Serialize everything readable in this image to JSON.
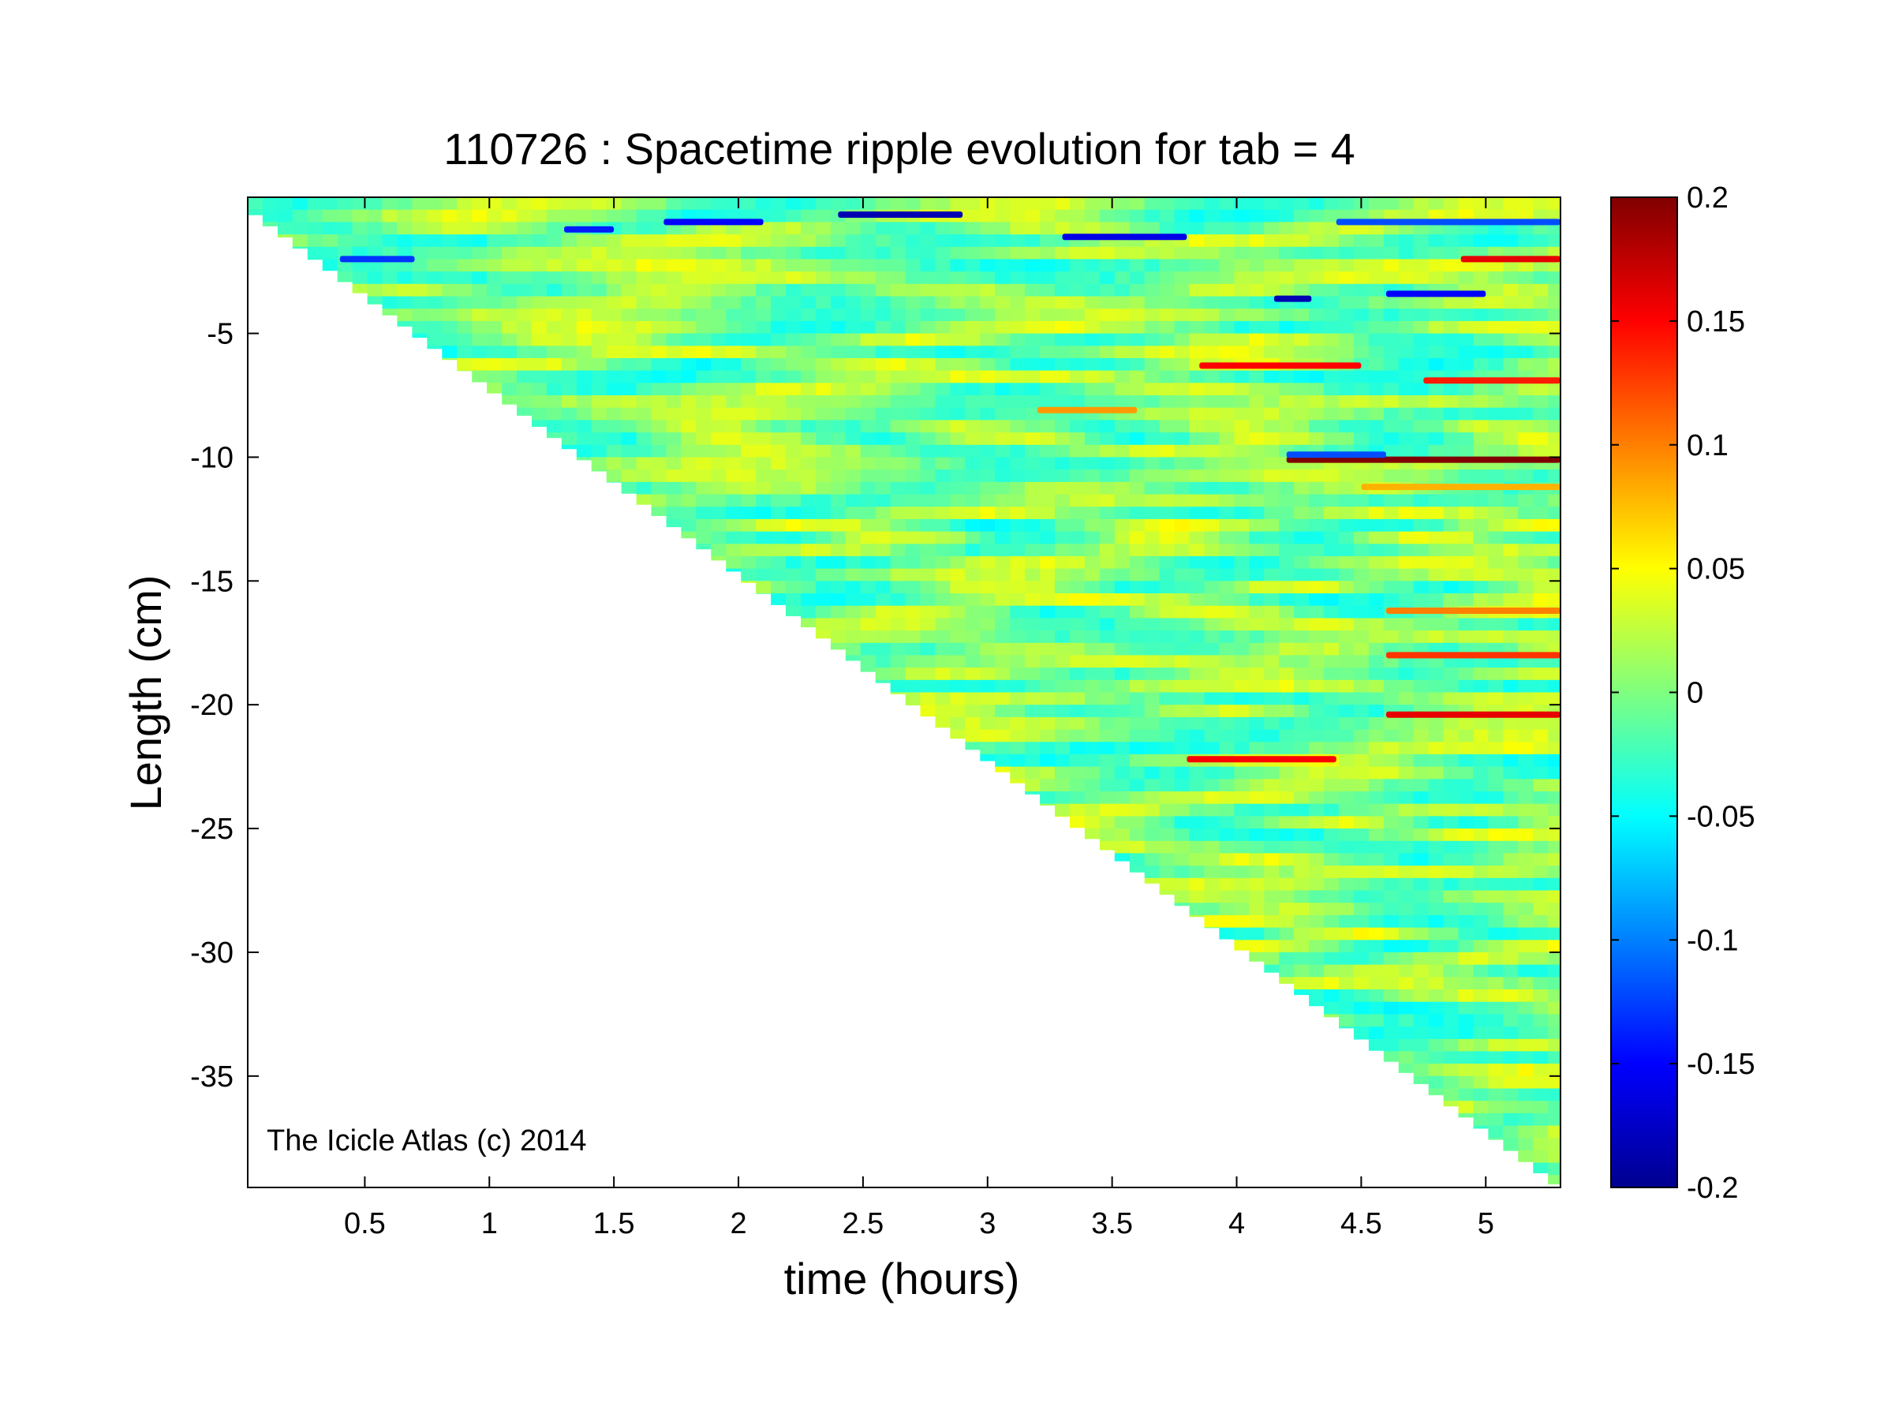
{
  "chart_data": {
    "type": "heatmap",
    "title": "110726 : Spacetime ripple evolution for tab = 4",
    "xlabel": "time (hours)",
    "ylabel": "Length (cm)",
    "annotation": "The Icicle Atlas (c) 2014",
    "xlim": [
      0.03,
      5.3
    ],
    "ylim": [
      -39.5,
      0.5
    ],
    "x_ticks": [
      0.5,
      1,
      1.5,
      2,
      2.5,
      3,
      3.5,
      4,
      4.5,
      5
    ],
    "x_tick_labels": [
      "0.5",
      "1",
      "1.5",
      "2",
      "2.5",
      "3",
      "3.5",
      "4",
      "4.5",
      "5"
    ],
    "y_ticks": [
      -5,
      -10,
      -15,
      -20,
      -25,
      -30,
      -35
    ],
    "y_tick_labels": [
      "-5",
      "-10",
      "-15",
      "-20",
      "-25",
      "-30",
      "-35"
    ],
    "colorbar": {
      "colormap": "jet",
      "clim": [
        -0.2,
        0.2
      ],
      "ticks": [
        0.2,
        0.15,
        0.1,
        0.05,
        0,
        -0.05,
        -0.1,
        -0.15,
        -0.2
      ],
      "tick_labels": [
        "0.2",
        "0.15",
        "0.1",
        "0.05",
        "0",
        "-0.05",
        "-0.1",
        "-0.15",
        "-0.2"
      ]
    },
    "data_region": "triangular: data exists where length >= -7.5 * time; white elsewhere",
    "background_value": 0.0,
    "features": [
      {
        "t_start": 4.2,
        "t_end": 5.3,
        "length": -10.1,
        "value": 0.2
      },
      {
        "t_start": 4.2,
        "t_end": 4.6,
        "length": -9.9,
        "value": -0.12
      },
      {
        "t_start": 3.85,
        "t_end": 4.5,
        "length": -6.3,
        "value": 0.15
      },
      {
        "t_start": 4.75,
        "t_end": 5.3,
        "length": -6.9,
        "value": 0.14
      },
      {
        "t_start": 4.6,
        "t_end": 5.3,
        "length": -18.0,
        "value": 0.13
      },
      {
        "t_start": 4.6,
        "t_end": 5.3,
        "length": -20.4,
        "value": 0.16
      },
      {
        "t_start": 3.8,
        "t_end": 4.4,
        "length": -22.2,
        "value": 0.15
      },
      {
        "t_start": 4.9,
        "t_end": 5.3,
        "length": -2.0,
        "value": 0.16
      },
      {
        "t_start": 4.15,
        "t_end": 4.3,
        "length": -3.6,
        "value": -0.18
      },
      {
        "t_start": 4.6,
        "t_end": 5.0,
        "length": -3.4,
        "value": -0.15
      },
      {
        "t_start": 2.4,
        "t_end": 2.9,
        "length": -0.2,
        "value": -0.18
      },
      {
        "t_start": 3.3,
        "t_end": 3.8,
        "length": -1.1,
        "value": -0.16
      },
      {
        "t_start": 1.7,
        "t_end": 2.1,
        "length": -0.5,
        "value": -0.15
      },
      {
        "t_start": 1.3,
        "t_end": 1.5,
        "length": -0.8,
        "value": -0.14
      },
      {
        "t_start": 0.4,
        "t_end": 0.7,
        "length": -2.0,
        "value": -0.13
      },
      {
        "t_start": 4.4,
        "t_end": 5.3,
        "length": -0.5,
        "value": -0.12
      },
      {
        "t_start": 3.2,
        "t_end": 3.6,
        "length": -8.1,
        "value": 0.09
      },
      {
        "t_start": 4.6,
        "t_end": 5.3,
        "length": -16.2,
        "value": 0.1
      },
      {
        "t_start": 4.5,
        "t_end": 5.3,
        "length": -11.2,
        "value": 0.08
      }
    ]
  }
}
